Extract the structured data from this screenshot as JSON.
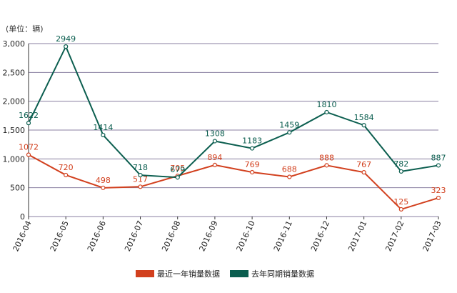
{
  "chart_data": {
    "type": "line",
    "unit_label": "(单位：辆)",
    "categories": [
      "2016-04",
      "2016-05",
      "2016-06",
      "2016-07",
      "2016-08",
      "2016-09",
      "2016-10",
      "2016-11",
      "2016-12",
      "2017-01",
      "2017-02",
      "2017-03"
    ],
    "series": [
      {
        "name": "最近一年销量数据",
        "color": "#d2401e",
        "values": [
          1072,
          720,
          498,
          517,
          705,
          894,
          769,
          688,
          888,
          767,
          125,
          323
        ]
      },
      {
        "name": "去年同期销量数据",
        "color": "#0b5e4f",
        "values": [
          1622,
          2949,
          1414,
          718,
          679,
          1308,
          1183,
          1459,
          1810,
          1584,
          782,
          887
        ]
      }
    ],
    "ylim": [
      0,
      3000
    ],
    "yticks": [
      0,
      500,
      {
        "value": 1000,
        "label": "1,000"
      },
      {
        "value": 1500,
        "label": "1,500"
      },
      {
        "value": 2000,
        "label": "2,000"
      },
      {
        "value": 2500,
        "label": "2,500"
      },
      {
        "value": 3000,
        "label": "3,000"
      }
    ],
    "grid": true,
    "legend": "bottom"
  }
}
